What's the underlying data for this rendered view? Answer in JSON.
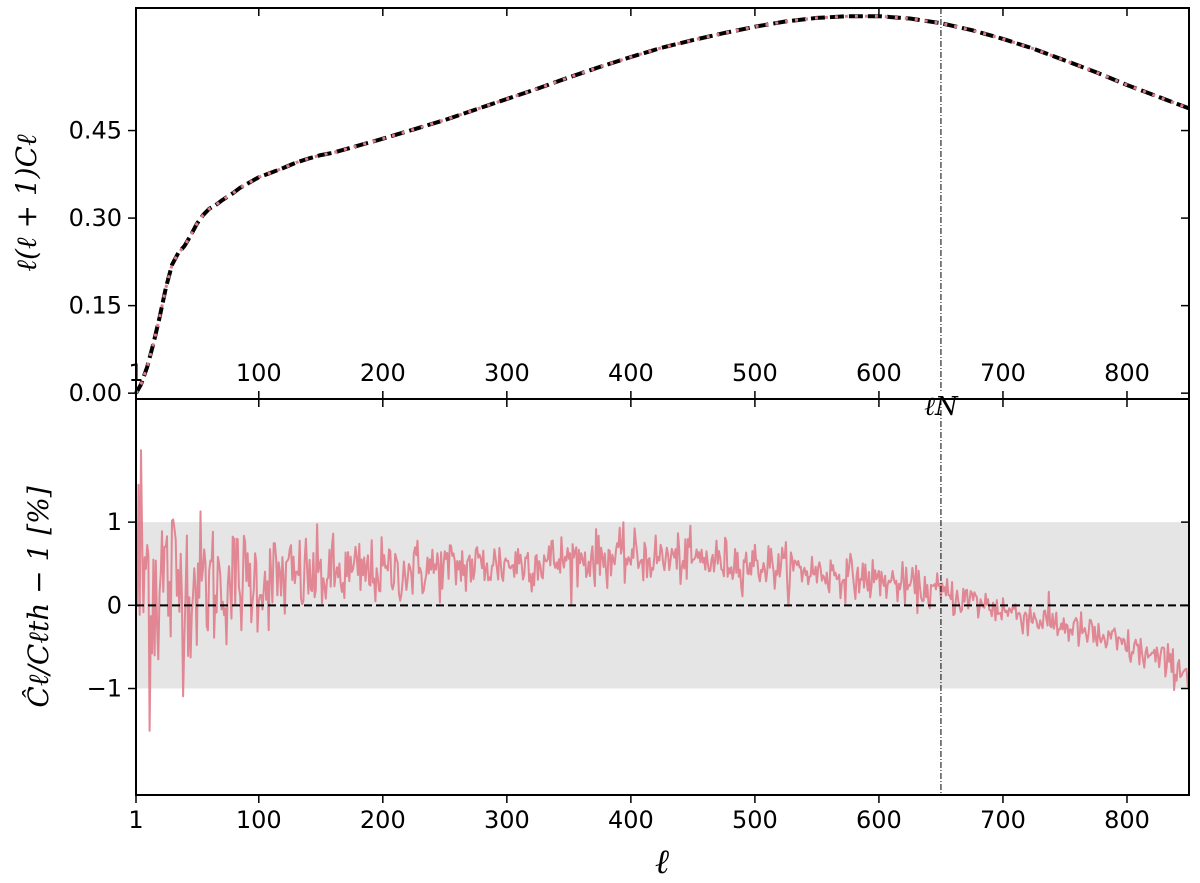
{
  "chart_data": [
    {
      "panel": "top",
      "type": "line",
      "title": "",
      "xlabel": "",
      "ylabel": "ℓ(ℓ + 1)Cℓ",
      "xlim": [
        1,
        850
      ],
      "ylim": [
        -0.01,
        0.66
      ],
      "xticks": [
        "1",
        "100",
        "200",
        "300",
        "400",
        "500",
        "600",
        "700",
        "800"
      ],
      "yticks": [
        "0.00",
        "0.15",
        "0.30",
        "0.45"
      ],
      "vline": {
        "x": 650,
        "label": "ℓN"
      },
      "x": [
        1,
        5,
        10,
        15,
        20,
        25,
        30,
        35,
        40,
        45,
        50,
        55,
        60,
        65,
        70,
        75,
        80,
        85,
        90,
        95,
        100,
        110,
        120,
        130,
        140,
        150,
        160,
        170,
        180,
        190,
        200,
        225,
        250,
        275,
        300,
        325,
        350,
        375,
        400,
        425,
        450,
        475,
        500,
        525,
        550,
        575,
        600,
        625,
        650,
        675,
        700,
        725,
        750,
        775,
        800,
        825,
        850
      ],
      "series": [
        {
          "style": "theory-dashed-black",
          "color": "#000000",
          "y": [
            0.0,
            0.015,
            0.045,
            0.085,
            0.13,
            0.18,
            0.22,
            0.24,
            0.252,
            0.27,
            0.29,
            0.305,
            0.316,
            0.322,
            0.33,
            0.337,
            0.344,
            0.352,
            0.358,
            0.364,
            0.37,
            0.378,
            0.386,
            0.395,
            0.402,
            0.408,
            0.412,
            0.418,
            0.424,
            0.43,
            0.436,
            0.452,
            0.468,
            0.486,
            0.504,
            0.522,
            0.541,
            0.559,
            0.576,
            0.592,
            0.605,
            0.617,
            0.628,
            0.637,
            0.643,
            0.646,
            0.646,
            0.642,
            0.634,
            0.622,
            0.607,
            0.59,
            0.57,
            0.55,
            0.528,
            0.508,
            0.488
          ]
        },
        {
          "style": "measured-dotted-pink",
          "color": "#e07b8a",
          "y": [
            0.0,
            0.015,
            0.045,
            0.085,
            0.13,
            0.18,
            0.22,
            0.24,
            0.252,
            0.27,
            0.29,
            0.305,
            0.316,
            0.322,
            0.33,
            0.337,
            0.344,
            0.352,
            0.358,
            0.364,
            0.37,
            0.378,
            0.386,
            0.395,
            0.402,
            0.408,
            0.412,
            0.418,
            0.424,
            0.43,
            0.436,
            0.452,
            0.468,
            0.486,
            0.504,
            0.522,
            0.541,
            0.559,
            0.576,
            0.592,
            0.605,
            0.617,
            0.628,
            0.637,
            0.643,
            0.646,
            0.646,
            0.642,
            0.634,
            0.622,
            0.607,
            0.59,
            0.57,
            0.55,
            0.528,
            0.508,
            0.488
          ]
        }
      ]
    },
    {
      "panel": "bottom",
      "type": "line",
      "title": "",
      "xlabel": "ℓ",
      "ylabel": "Ĉℓ/Cℓth − 1 [%]",
      "xlim": [
        1,
        850
      ],
      "ylim": [
        -2.28,
        2.48
      ],
      "xticks": [
        "1",
        "100",
        "200",
        "300",
        "400",
        "500",
        "600",
        "700",
        "800"
      ],
      "yticks": [
        "1",
        "0",
        "−1"
      ],
      "band": [
        -1,
        1
      ],
      "hline": 0,
      "vline": {
        "x": 650
      },
      "series": [
        {
          "name": "",
          "color": "#e07b8a",
          "trend_x": [
            1,
            50,
            100,
            150,
            200,
            250,
            300,
            350,
            400,
            450,
            500,
            550,
            600,
            650,
            700,
            750,
            800,
            850
          ],
          "trend_y": [
            0.35,
            0.25,
            0.3,
            0.35,
            0.4,
            0.45,
            0.5,
            0.55,
            0.58,
            0.55,
            0.5,
            0.4,
            0.3,
            0.15,
            -0.05,
            -0.25,
            -0.5,
            -0.8
          ],
          "noise_x": [
            1,
            20,
            50,
            100,
            150,
            200,
            300,
            400,
            500,
            600,
            700,
            850
          ],
          "noise_amp": [
            2.2,
            1.2,
            0.8,
            0.55,
            0.45,
            0.35,
            0.3,
            0.28,
            0.25,
            0.22,
            0.2,
            0.2
          ]
        }
      ]
    }
  ]
}
